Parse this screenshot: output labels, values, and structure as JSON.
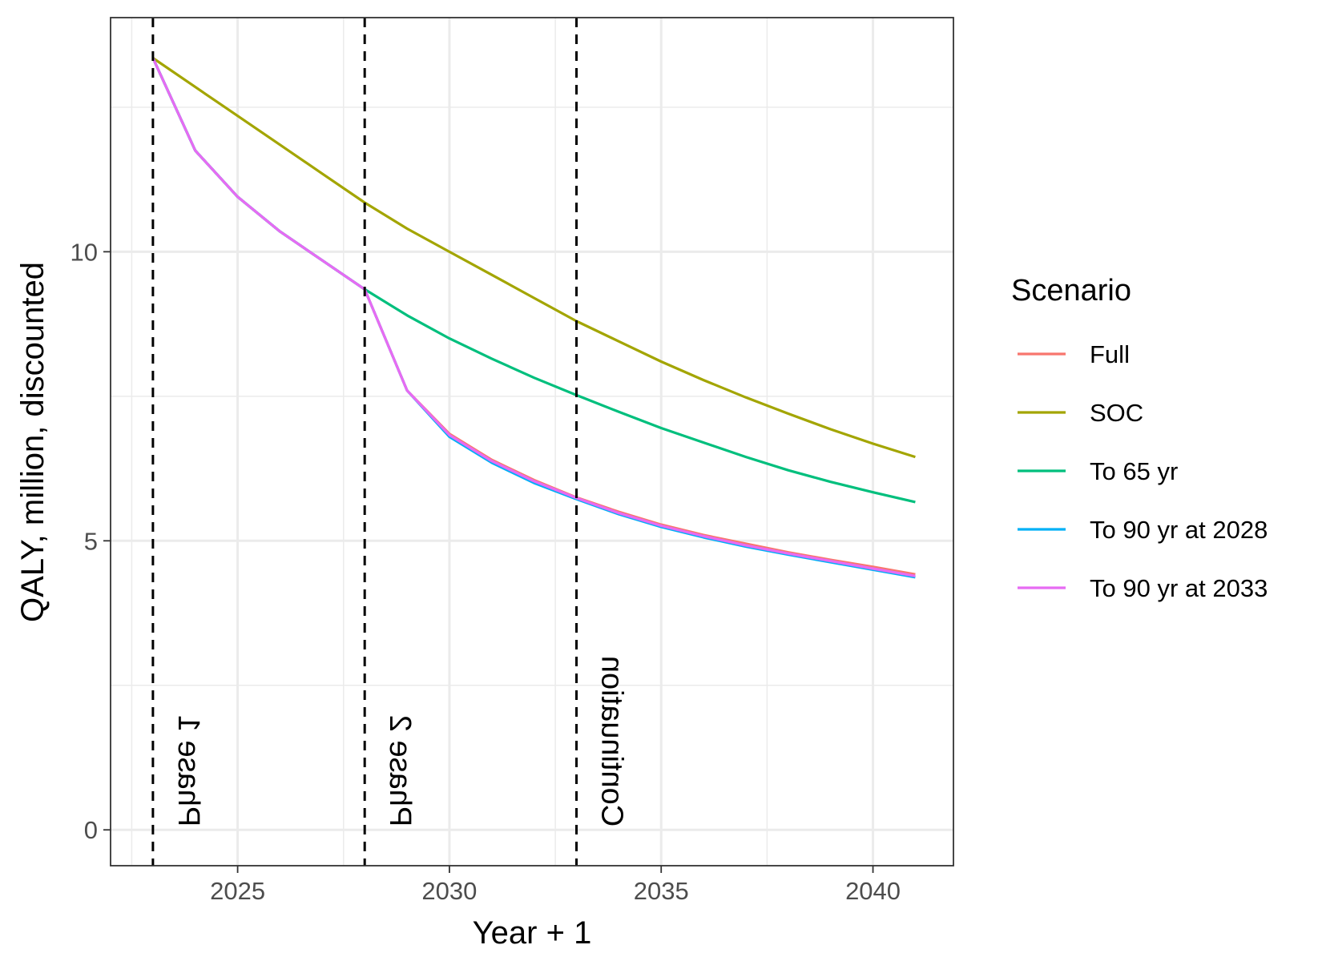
{
  "chart_data": {
    "type": "line",
    "title": "",
    "xlabel": "Year + 1",
    "ylabel": "QALY, million, discounted",
    "xlim": [
      2022,
      2041.9
    ],
    "ylim": [
      -0.62,
      14.05
    ],
    "x_ticks": [
      2025,
      2030,
      2035,
      2040
    ],
    "y_ticks": [
      0,
      5,
      10
    ],
    "x": [
      2023,
      2024,
      2025,
      2026,
      2027,
      2028,
      2029,
      2030,
      2031,
      2032,
      2033,
      2034,
      2035,
      2036,
      2037,
      2038,
      2039,
      2040,
      2041
    ],
    "series": [
      {
        "name": "Full",
        "color": "#F8766D",
        "values": [
          13.35,
          11.75,
          10.95,
          10.35,
          9.85,
          9.35,
          7.6,
          6.85,
          6.4,
          6.05,
          5.75,
          5.5,
          5.28,
          5.1,
          4.95,
          4.8,
          4.67,
          4.55,
          4.42
        ]
      },
      {
        "name": "SOC",
        "color": "#A3A500",
        "values": [
          13.35,
          12.85,
          12.35,
          11.85,
          11.35,
          10.85,
          10.4,
          10.0,
          9.6,
          9.2,
          8.8,
          8.45,
          8.1,
          7.78,
          7.48,
          7.2,
          6.93,
          6.68,
          6.45
        ]
      },
      {
        "name": "To 65 yr",
        "color": "#00BF7D",
        "values": [
          13.35,
          11.75,
          10.95,
          10.35,
          9.85,
          9.35,
          8.9,
          8.5,
          8.15,
          7.82,
          7.52,
          7.23,
          6.95,
          6.7,
          6.45,
          6.22,
          6.02,
          5.84,
          5.67
        ]
      },
      {
        "name": "To 90 yr at 2028",
        "color": "#00B0F6",
        "values": [
          13.35,
          11.75,
          10.95,
          10.35,
          9.85,
          9.35,
          7.6,
          6.8,
          6.35,
          6.0,
          5.72,
          5.46,
          5.24,
          5.06,
          4.9,
          4.76,
          4.63,
          4.5,
          4.37
        ]
      },
      {
        "name": "To 90 yr at 2033",
        "color": "#E76BF3",
        "values": [
          13.35,
          11.75,
          10.95,
          10.35,
          9.85,
          9.35,
          7.6,
          6.83,
          6.38,
          6.03,
          5.74,
          5.48,
          5.26,
          5.08,
          4.92,
          4.78,
          4.65,
          4.52,
          4.39
        ]
      }
    ],
    "vlines": [
      {
        "x": 2023,
        "label": "Phase 1"
      },
      {
        "x": 2028,
        "label": "Phase 2"
      },
      {
        "x": 2033,
        "label": "Continuation"
      }
    ],
    "legend": {
      "title": "Scenario",
      "placement": "right"
    },
    "grid": true
  }
}
